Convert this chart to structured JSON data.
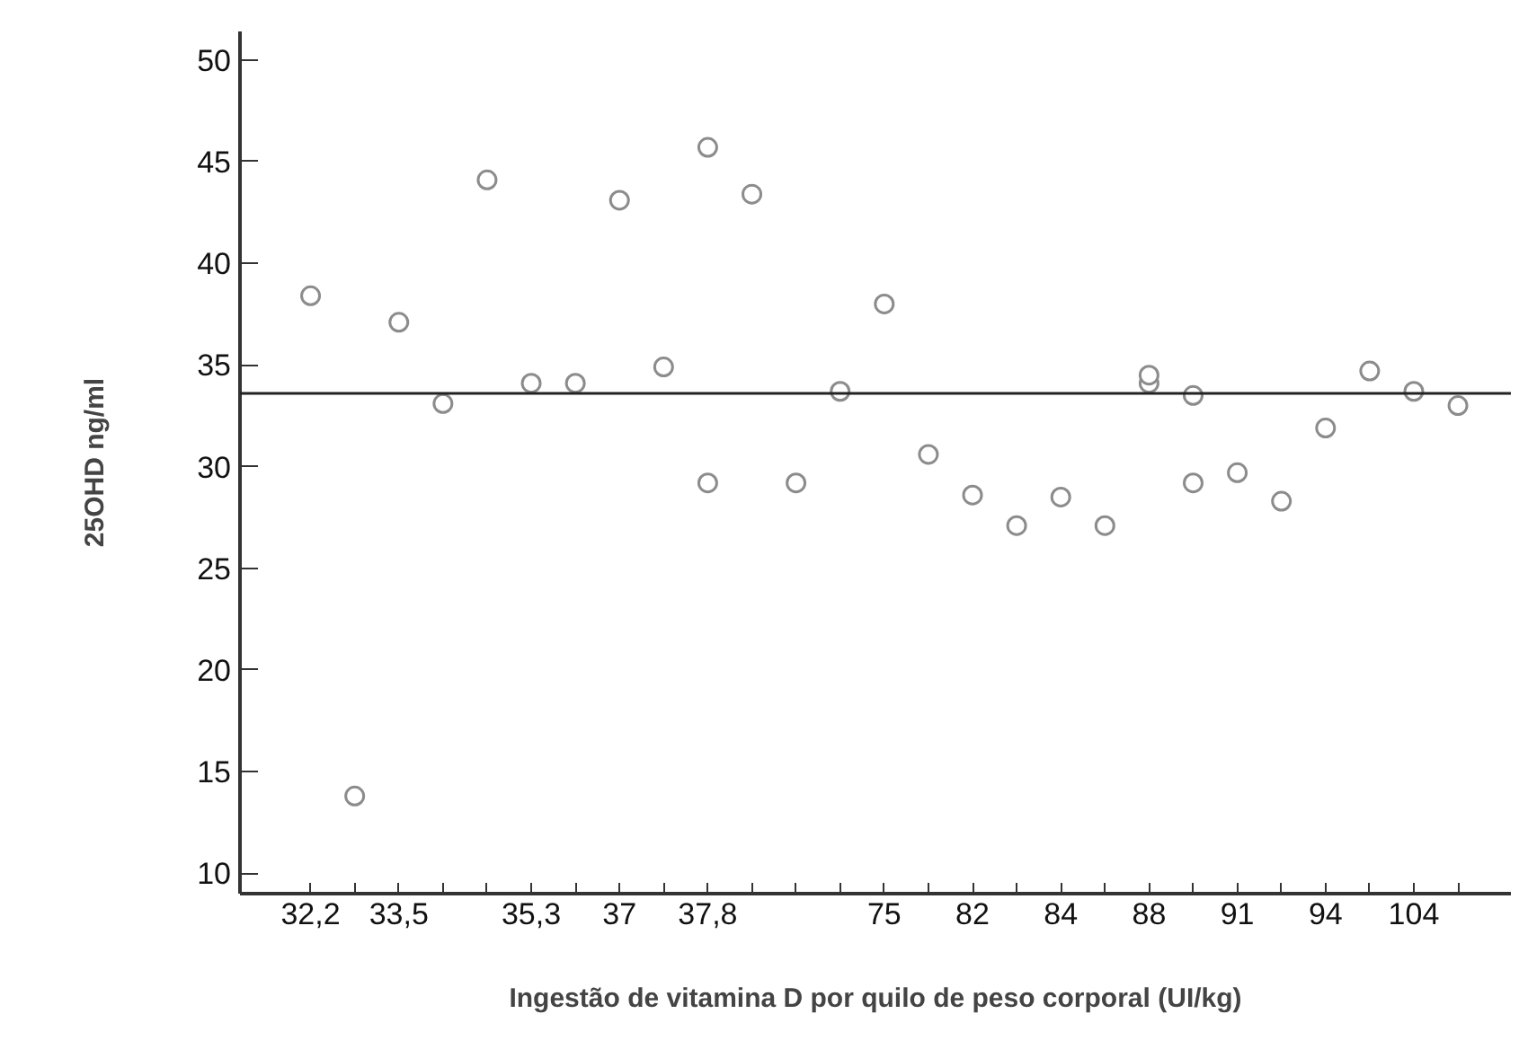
{
  "chart_data": {
    "type": "scatter",
    "xlabel": "Ingestão de vitamina D por quilo de peso corporal (UI/kg)",
    "ylabel": "25OHD ng/ml",
    "categories": [
      "32,2",
      null,
      "33,5",
      null,
      null,
      "35,3",
      null,
      "37",
      null,
      "37,8",
      null,
      null,
      null,
      "75",
      null,
      "82",
      null,
      "84",
      null,
      "88",
      null,
      "91",
      null,
      "94",
      null,
      "104",
      null
    ],
    "series": [
      {
        "color": "#8c8c8c",
        "values": [
          38.4,
          13.8,
          37.1,
          33.1,
          44.1,
          34.1,
          34.1,
          43.1,
          34.9,
          45.7,
          43.4,
          29.2,
          33.7,
          38.0,
          30.6,
          28.6,
          27.1,
          28.5,
          27.1,
          34.1,
          33.5,
          29.7,
          28.3,
          31.9,
          34.7,
          33.7,
          33.0
        ]
      },
      {
        "color": "#8c8c8c",
        "values": [
          null,
          null,
          null,
          null,
          null,
          null,
          null,
          null,
          null,
          29.2,
          null,
          null,
          null,
          null,
          null,
          null,
          null,
          null,
          null,
          34.5,
          29.2,
          null,
          null,
          null,
          null,
          null,
          null
        ]
      }
    ],
    "ylim": [
      9,
      51.4
    ],
    "yticks": [
      10,
      15,
      20,
      25,
      30,
      35,
      40,
      45,
      50
    ],
    "ref_lines": [
      {
        "axis": "y",
        "value": 33.6,
        "color": "#222222"
      }
    ],
    "marker": "circle"
  }
}
